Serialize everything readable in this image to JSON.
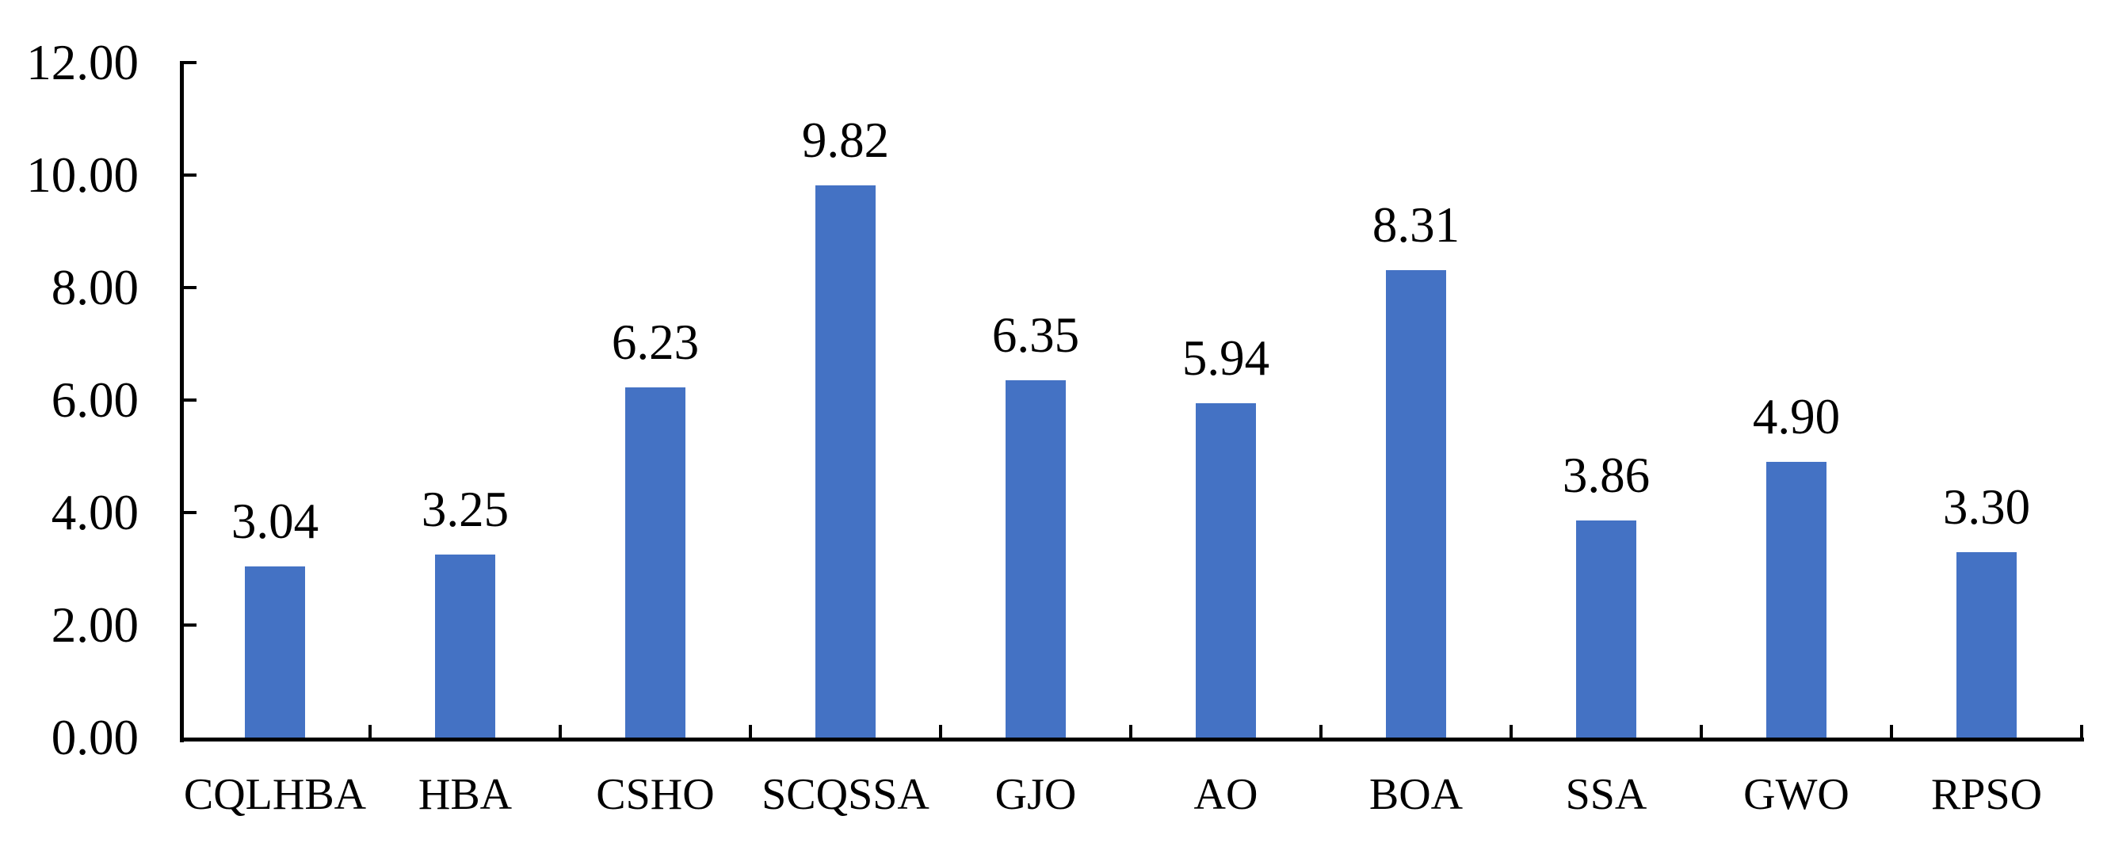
{
  "chart_data": {
    "type": "bar",
    "title": "",
    "xlabel": "",
    "ylabel": "",
    "categories": [
      "CQLHBA",
      "HBA",
      "CSHO",
      "SCQSSA",
      "GJO",
      "AO",
      "BOA",
      "SSA",
      "GWO",
      "RPSO"
    ],
    "values": [
      3.04,
      3.25,
      6.23,
      9.82,
      6.35,
      5.94,
      8.31,
      3.86,
      4.9,
      3.3
    ],
    "value_labels": [
      "3.04",
      "3.25",
      "6.23",
      "9.82",
      "6.35",
      "5.94",
      "8.31",
      "3.86",
      "4.90",
      "3.30"
    ],
    "ylim": [
      0,
      12
    ],
    "y_tick_step": 2,
    "y_tick_values": [
      0,
      2,
      4,
      6,
      8,
      10,
      12
    ],
    "y_tick_labels": [
      "0.00",
      "2.00",
      "4.00",
      "6.00",
      "8.00",
      "10.00",
      "12.00"
    ],
    "grid": false,
    "legend": false,
    "tick_direction": "inside",
    "colors": {
      "bar": "#4472C4",
      "axis": "#000000",
      "text": "#000000",
      "background": "#FFFFFF"
    }
  }
}
